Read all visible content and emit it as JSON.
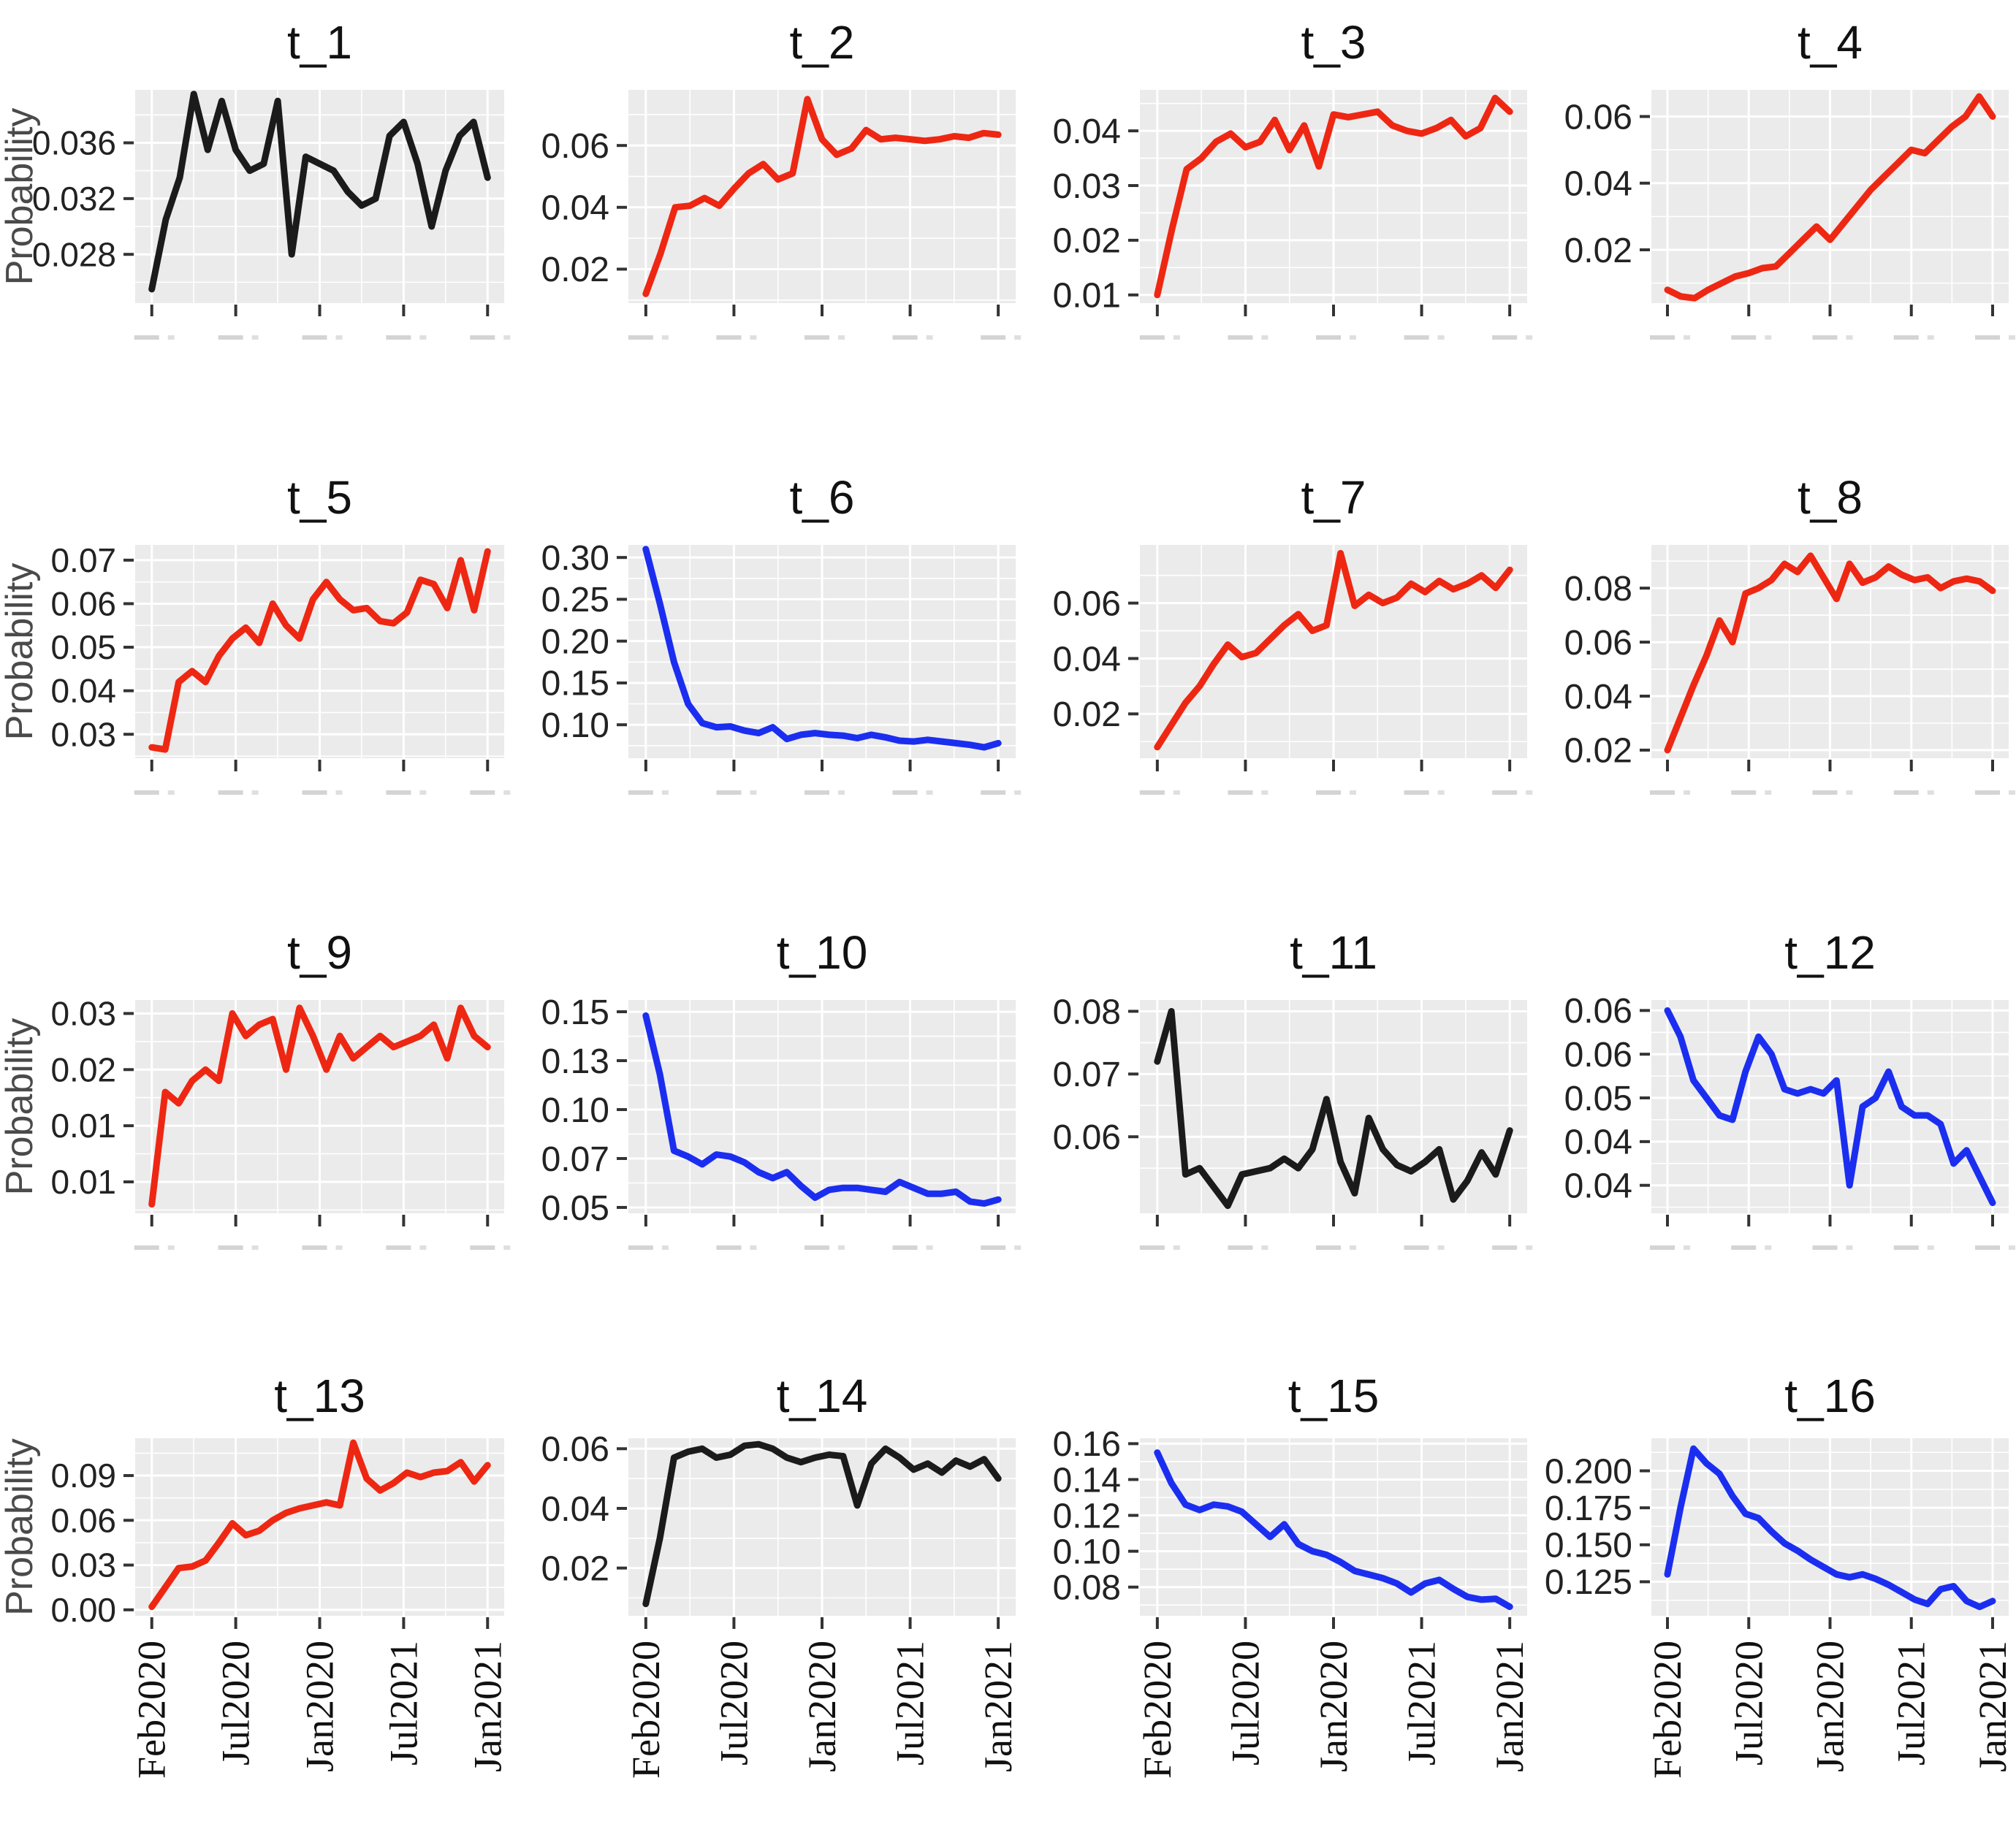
{
  "page": {
    "background": "#ffffff"
  },
  "axis": {
    "ylabel": "Probability",
    "x_tick_labels": [
      "Feb2020",
      "Jul2020",
      "Jan2020",
      "Jul2021",
      "Jan2021"
    ],
    "tick_text_color": "#222222",
    "ylabel_color": "#4a4a4a",
    "x_label_color": "#111111"
  },
  "panel": {
    "bg": "#ebebeb",
    "grid": "#ffffff",
    "tick_mark_color": "#333333",
    "clipped_label_color": "#c9c9c9"
  },
  "colors": {
    "red": "#ee2713",
    "blue": "#1b2ef0",
    "black": "#1b1b1b"
  },
  "chart_data": {
    "type": "line",
    "grid": "on",
    "legend": "none",
    "facet_titles": [
      "t_1",
      "t_2",
      "t_3",
      "t_4",
      "t_5",
      "t_6",
      "t_7",
      "t_8",
      "t_9",
      "t_10",
      "t_11",
      "t_12",
      "t_13",
      "t_14",
      "t_15",
      "t_16"
    ],
    "x_tick_labels": [
      "Feb2020",
      "Jul2020",
      "Jan2020",
      "Jul2021",
      "Jan2021"
    ],
    "ylabel": "Probability",
    "facets": [
      {
        "title": "t_1",
        "color": "#1b1b1b",
        "yticks": [
          0.028,
          0.032,
          0.036
        ],
        "ylim": [
          0.0245,
          0.0398
        ],
        "values": [
          0.0255,
          0.0305,
          0.0335,
          0.0395,
          0.0355,
          0.039,
          0.0355,
          0.034,
          0.0345,
          0.039,
          0.028,
          0.035,
          0.0345,
          0.034,
          0.0325,
          0.0315,
          0.032,
          0.0365,
          0.0375,
          0.0345,
          0.03,
          0.034,
          0.0365,
          0.0375,
          0.0335
        ]
      },
      {
        "title": "t_2",
        "color": "#ee2713",
        "yticks": [
          0.02,
          0.04,
          0.06
        ],
        "ylim": [
          0.009,
          0.078
        ],
        "values": [
          0.012,
          0.025,
          0.04,
          0.0405,
          0.043,
          0.0405,
          0.046,
          0.051,
          0.054,
          0.049,
          0.051,
          0.075,
          0.062,
          0.057,
          0.059,
          0.065,
          0.062,
          0.0625,
          0.062,
          0.0615,
          0.062,
          0.063,
          0.0625,
          0.064,
          0.0635
        ]
      },
      {
        "title": "t_3",
        "color": "#ee2713",
        "yticks": [
          0.01,
          0.02,
          0.03,
          0.04
        ],
        "ylim": [
          0.0085,
          0.0475
        ],
        "values": [
          0.01,
          0.022,
          0.033,
          0.035,
          0.038,
          0.0395,
          0.037,
          0.038,
          0.042,
          0.0365,
          0.041,
          0.0335,
          0.043,
          0.0425,
          0.043,
          0.0435,
          0.041,
          0.04,
          0.0395,
          0.0405,
          0.042,
          0.039,
          0.0405,
          0.046,
          0.0435
        ]
      },
      {
        "title": "t_4",
        "color": "#ee2713",
        "yticks": [
          0.02,
          0.04,
          0.06
        ],
        "ylim": [
          0.004,
          0.068
        ],
        "values": [
          0.008,
          0.006,
          0.0055,
          0.008,
          0.01,
          0.012,
          0.013,
          0.0145,
          0.015,
          0.019,
          0.023,
          0.027,
          0.023,
          0.028,
          0.033,
          0.038,
          0.042,
          0.046,
          0.05,
          0.049,
          0.053,
          0.057,
          0.06,
          0.066,
          0.06
        ]
      },
      {
        "title": "t_5",
        "color": "#ee2713",
        "yticks": [
          0.03,
          0.04,
          0.05,
          0.06,
          0.07
        ],
        "ylim": [
          0.0245,
          0.0735
        ],
        "values": [
          0.027,
          0.0265,
          0.042,
          0.0445,
          0.042,
          0.048,
          0.052,
          0.0545,
          0.051,
          0.06,
          0.055,
          0.052,
          0.061,
          0.065,
          0.061,
          0.0585,
          0.059,
          0.056,
          0.0555,
          0.058,
          0.0655,
          0.0645,
          0.059,
          0.07,
          0.0585,
          0.072
        ]
      },
      {
        "title": "t_6",
        "color": "#1b2ef0",
        "yticks": [
          0.1,
          0.15,
          0.2,
          0.25,
          0.3
        ],
        "ylim": [
          0.06,
          0.315
        ],
        "values": [
          0.31,
          0.245,
          0.175,
          0.125,
          0.102,
          0.097,
          0.098,
          0.093,
          0.09,
          0.097,
          0.083,
          0.088,
          0.09,
          0.088,
          0.087,
          0.084,
          0.088,
          0.085,
          0.081,
          0.08,
          0.082,
          0.08,
          0.078,
          0.076,
          0.073,
          0.078
        ]
      },
      {
        "title": "t_7",
        "color": "#ee2713",
        "yticks": [
          0.02,
          0.04,
          0.06
        ],
        "ylim": [
          0.004,
          0.081
        ],
        "values": [
          0.008,
          0.016,
          0.024,
          0.03,
          0.038,
          0.045,
          0.0405,
          0.042,
          0.047,
          0.052,
          0.056,
          0.05,
          0.052,
          0.078,
          0.059,
          0.063,
          0.06,
          0.062,
          0.067,
          0.064,
          0.068,
          0.065,
          0.067,
          0.07,
          0.0655,
          0.072
        ]
      },
      {
        "title": "t_8",
        "color": "#ee2713",
        "yticks": [
          0.02,
          0.04,
          0.06,
          0.08
        ],
        "ylim": [
          0.017,
          0.096
        ],
        "values": [
          0.02,
          0.032,
          0.044,
          0.055,
          0.068,
          0.06,
          0.078,
          0.08,
          0.083,
          0.089,
          0.086,
          0.092,
          0.084,
          0.076,
          0.089,
          0.082,
          0.084,
          0.088,
          0.085,
          0.083,
          0.084,
          0.08,
          0.0825,
          0.0835,
          0.0825,
          0.079
        ]
      },
      {
        "title": "t_9",
        "color": "#ee2713",
        "yticks": [
          0.01,
          0.015,
          0.02,
          0.025
        ],
        "ylim": [
          0.0072,
          0.0262
        ],
        "values": [
          0.008,
          0.018,
          0.017,
          0.019,
          0.02,
          0.019,
          0.025,
          0.023,
          0.024,
          0.0245,
          0.02,
          0.0255,
          0.023,
          0.02,
          0.023,
          0.021,
          0.022,
          0.023,
          0.022,
          0.0225,
          0.023,
          0.024,
          0.021,
          0.0255,
          0.023,
          0.022
        ]
      },
      {
        "title": "t_10",
        "color": "#1b2ef0",
        "yticks": [
          0.05,
          0.075,
          0.1,
          0.125,
          0.15
        ],
        "ylim": [
          0.047,
          0.156
        ],
        "values": [
          0.148,
          0.118,
          0.079,
          0.076,
          0.072,
          0.077,
          0.076,
          0.073,
          0.068,
          0.065,
          0.068,
          0.061,
          0.055,
          0.059,
          0.06,
          0.06,
          0.059,
          0.058,
          0.063,
          0.06,
          0.057,
          0.057,
          0.058,
          0.053,
          0.052,
          0.054
        ]
      },
      {
        "title": "t_11",
        "color": "#1b1b1b",
        "yticks": [
          0.06,
          0.07,
          0.08
        ],
        "ylim": [
          0.0478,
          0.0818
        ],
        "values": [
          0.072,
          0.08,
          0.054,
          0.055,
          0.052,
          0.049,
          0.054,
          0.0545,
          0.055,
          0.0565,
          0.055,
          0.058,
          0.066,
          0.056,
          0.051,
          0.063,
          0.058,
          0.0555,
          0.0545,
          0.056,
          0.058,
          0.05,
          0.053,
          0.0575,
          0.054,
          0.061
        ]
      },
      {
        "title": "t_12",
        "color": "#1b2ef0",
        "yticks": [
          0.04,
          0.045,
          0.05,
          0.055,
          0.06
        ],
        "ylim": [
          0.0368,
          0.0612
        ],
        "values": [
          0.06,
          0.057,
          0.052,
          0.05,
          0.048,
          0.0475,
          0.053,
          0.057,
          0.055,
          0.051,
          0.0505,
          0.051,
          0.0505,
          0.052,
          0.04,
          0.049,
          0.05,
          0.053,
          0.049,
          0.048,
          0.048,
          0.047,
          0.0425,
          0.044,
          0.041,
          0.038
        ]
      },
      {
        "title": "t_13",
        "color": "#ee2713",
        "yticks": [
          0.0,
          0.03,
          0.06,
          0.09
        ],
        "ylim": [
          -0.004,
          0.115
        ],
        "values": [
          0.002,
          0.015,
          0.028,
          0.029,
          0.033,
          0.045,
          0.058,
          0.05,
          0.053,
          0.06,
          0.065,
          0.068,
          0.07,
          0.072,
          0.07,
          0.112,
          0.088,
          0.08,
          0.085,
          0.092,
          0.089,
          0.092,
          0.093,
          0.099,
          0.086,
          0.097
        ]
      },
      {
        "title": "t_14",
        "color": "#1b1b1b",
        "yticks": [
          0.02,
          0.04,
          0.06
        ],
        "ylim": [
          0.004,
          0.0635
        ],
        "values": [
          0.008,
          0.03,
          0.057,
          0.059,
          0.06,
          0.057,
          0.058,
          0.061,
          0.0615,
          0.06,
          0.057,
          0.0555,
          0.057,
          0.058,
          0.0575,
          0.041,
          0.055,
          0.06,
          0.057,
          0.053,
          0.055,
          0.052,
          0.056,
          0.054,
          0.0565,
          0.05
        ]
      },
      {
        "title": "t_15",
        "color": "#1b2ef0",
        "yticks": [
          0.08,
          0.1,
          0.12,
          0.14,
          0.16
        ],
        "ylim": [
          0.064,
          0.163
        ],
        "values": [
          0.155,
          0.138,
          0.126,
          0.123,
          0.126,
          0.125,
          0.122,
          0.115,
          0.108,
          0.115,
          0.104,
          0.1,
          0.098,
          0.094,
          0.089,
          0.087,
          0.085,
          0.082,
          0.077,
          0.082,
          0.084,
          0.079,
          0.0745,
          0.073,
          0.0735,
          0.069
        ]
      },
      {
        "title": "t_16",
        "color": "#1b2ef0",
        "yticks": [
          0.125,
          0.15,
          0.175,
          0.2
        ],
        "ylim": [
          0.102,
          0.222
        ],
        "values": [
          0.13,
          0.175,
          0.215,
          0.205,
          0.198,
          0.183,
          0.171,
          0.168,
          0.159,
          0.151,
          0.146,
          0.14,
          0.135,
          0.13,
          0.128,
          0.13,
          0.127,
          0.123,
          0.118,
          0.113,
          0.11,
          0.12,
          0.122,
          0.112,
          0.108,
          0.112
        ]
      }
    ]
  }
}
